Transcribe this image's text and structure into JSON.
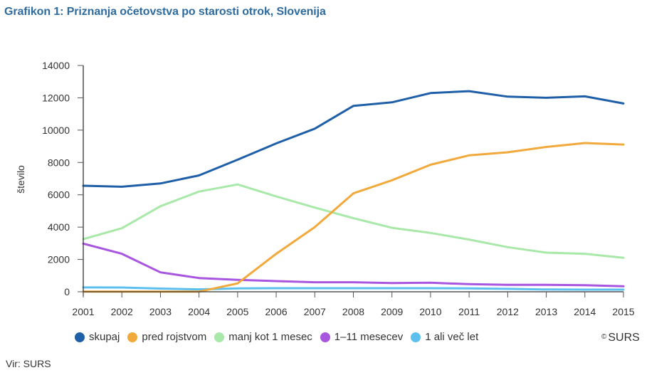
{
  "title": "Grafikon 1: Priznanja očetovstva po starosti otrok, Slovenija",
  "credit": "SURS",
  "credit_symbol": "©",
  "source": "Vir: SURS",
  "colors": {
    "title": "#2e6b9e",
    "skupaj": "#1f5fa8",
    "pred_rojstvom": "#f2a93b",
    "manj_kot_1_mesec": "#a8e8a8",
    "1_11_mesecev": "#a855e0",
    "1_ali_vec_let": "#5bc0ee"
  },
  "chart_data": {
    "type": "line",
    "title": "Grafikon 1: Priznanja očetovstva po starosti otrok, Slovenija",
    "xlabel": "",
    "ylabel": "število",
    "ylim": [
      0,
      14000
    ],
    "yticks": [
      0,
      2000,
      4000,
      6000,
      8000,
      10000,
      12000,
      14000
    ],
    "grid": false,
    "legend_position": "bottom",
    "categories": [
      "2001",
      "2002",
      "2003",
      "2004",
      "2005",
      "2006",
      "2007",
      "2008",
      "2009",
      "2010",
      "2011",
      "2012",
      "2013",
      "2014",
      "2015"
    ],
    "series": [
      {
        "name": "skupaj",
        "color": "#1f5fa8",
        "values": [
          6560,
          6500,
          6700,
          7200,
          8170,
          9180,
          10090,
          11500,
          11720,
          12290,
          12410,
          12070,
          12000,
          12090,
          11650
        ]
      },
      {
        "name": "pred rojstvom",
        "color": "#f2a93b",
        "values": [
          10,
          10,
          10,
          10,
          520,
          2350,
          4000,
          6090,
          6900,
          7860,
          8440,
          8630,
          8960,
          9200,
          9110
        ]
      },
      {
        "name": "manj kot 1 mesec",
        "color": "#a8e8a8",
        "values": [
          3260,
          3930,
          5290,
          6200,
          6640,
          5900,
          5210,
          4550,
          3960,
          3640,
          3230,
          2760,
          2420,
          2350,
          2100
        ]
      },
      {
        "name": "1–11 mesecev",
        "color": "#a855e0",
        "values": [
          2980,
          2350,
          1200,
          850,
          740,
          660,
          590,
          590,
          540,
          560,
          470,
          430,
          430,
          410,
          340
        ]
      },
      {
        "name": "1 ali več let",
        "color": "#5bc0ee",
        "values": [
          270,
          265,
          200,
          150,
          210,
          220,
          220,
          220,
          220,
          220,
          210,
          180,
          140,
          130,
          130
        ]
      }
    ]
  }
}
